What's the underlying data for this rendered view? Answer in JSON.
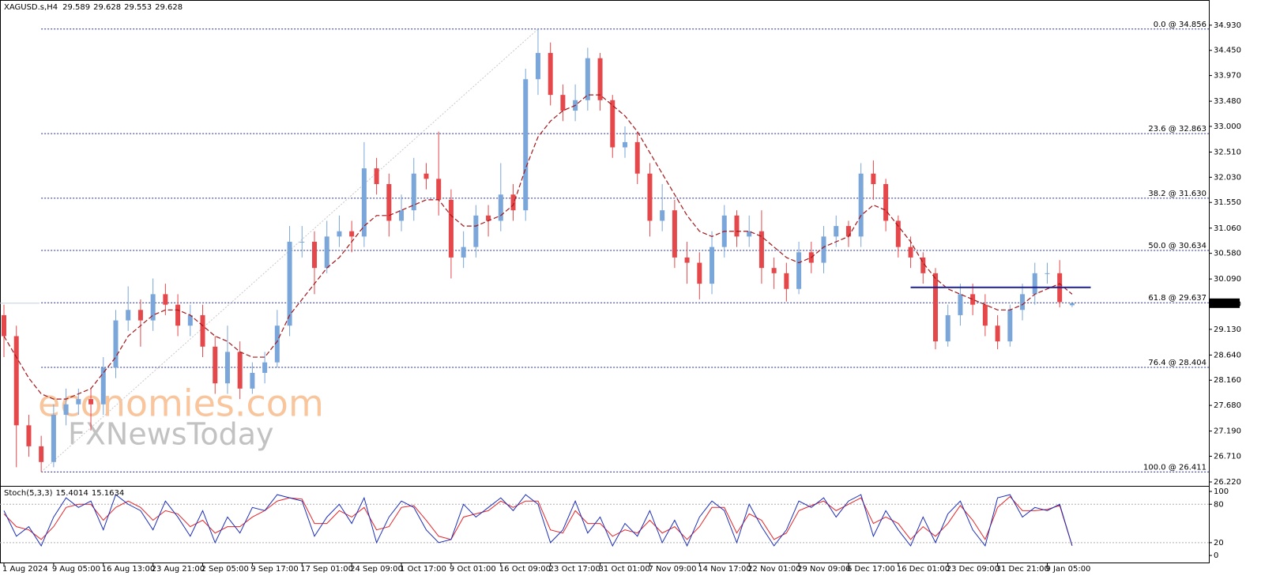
{
  "chart_data": [
    {
      "type": "candlestick",
      "symbol": "XAGUSD.s,H4",
      "up_color": "#7aa6da",
      "down_color": "#e5484b",
      "ma_color": "#a3161a",
      "fib_color": "#26307a",
      "level_color": "#1c1f8f",
      "watermark": [
        "economies.com",
        "FXNewsToday"
      ],
      "x": [
        "1 Aug 2024",
        null,
        null,
        null,
        "9 Aug 05:00",
        null,
        null,
        null,
        "16 Aug 13:00",
        null,
        null,
        null,
        "23 Aug 21:00",
        null,
        null,
        null,
        "2 Sep 05:00",
        null,
        null,
        null,
        "9 Sep 17:00",
        null,
        null,
        null,
        "17 Sep 01:00",
        null,
        null,
        null,
        "24 Sep 09:00",
        null,
        null,
        null,
        "1 Oct 17:00",
        null,
        null,
        null,
        "9 Oct 01:00",
        null,
        null,
        null,
        "16 Oct 09:00",
        null,
        null,
        null,
        "23 Oct 17:00",
        null,
        null,
        null,
        "31 Oct 01:00",
        null,
        null,
        null,
        "7 Nov 09:00",
        null,
        null,
        null,
        "14 Nov 17:00",
        null,
        null,
        null,
        "22 Nov 01:00",
        null,
        null,
        null,
        "29 Nov 09:00",
        null,
        null,
        null,
        "6 Dec 17:00",
        null,
        null,
        null,
        "16 Dec 01:00",
        null,
        null,
        null,
        "23 Dec 09:00",
        null,
        null,
        null,
        "31 Dec 21:00",
        null,
        null,
        null,
        "9 Jan 05:00",
        null,
        null
      ],
      "open": [
        29.4,
        29.0,
        27.3,
        26.9,
        26.6,
        27.5,
        27.7,
        27.8,
        27.7,
        28.4,
        29.3,
        29.5,
        29.3,
        29.8,
        29.6,
        29.2,
        29.4,
        28.8,
        28.1,
        28.7,
        28.0,
        28.3,
        28.5,
        29.2,
        30.8,
        30.8,
        30.3,
        30.9,
        31.0,
        30.9,
        32.2,
        31.9,
        31.2,
        31.4,
        32.1,
        32.0,
        31.6,
        30.5,
        30.7,
        31.3,
        31.2,
        31.7,
        31.4,
        33.9,
        34.4,
        33.6,
        33.3,
        33.5,
        34.3,
        33.5,
        32.6,
        32.7,
        32.1,
        31.2,
        31.4,
        30.5,
        30.4,
        30.0,
        30.7,
        31.3,
        30.9,
        31.0,
        30.3,
        30.2,
        29.9,
        30.6,
        30.4,
        30.9,
        31.1,
        30.9,
        32.1,
        31.9,
        31.2,
        30.7,
        30.5,
        30.2,
        28.9,
        29.4,
        29.8,
        29.6,
        29.2,
        28.9,
        29.5,
        29.8,
        30.2,
        30.2,
        29.589
      ],
      "high": [
        29.6,
        29.2,
        27.5,
        27.1,
        27.7,
        28.0,
        28.0,
        28.0,
        28.6,
        29.5,
        29.95,
        29.7,
        30.1,
        30.0,
        29.8,
        29.6,
        29.6,
        29.0,
        29.2,
        28.9,
        28.5,
        28.7,
        29.5,
        31.1,
        31.1,
        31.0,
        31.2,
        31.3,
        31.2,
        32.7,
        32.4,
        32.1,
        31.7,
        32.4,
        32.3,
        32.9,
        31.8,
        31.0,
        31.5,
        31.5,
        32.3,
        31.9,
        34.1,
        34.856,
        34.6,
        33.8,
        33.8,
        34.5,
        34.4,
        33.6,
        33.0,
        32.9,
        32.3,
        31.9,
        31.6,
        30.8,
        30.6,
        31.0,
        31.5,
        31.4,
        31.3,
        31.4,
        30.5,
        30.4,
        30.8,
        30.8,
        31.1,
        31.3,
        31.2,
        32.3,
        32.35,
        32.0,
        31.3,
        30.9,
        30.6,
        30.3,
        29.6,
        30.0,
        30.0,
        29.8,
        29.4,
        29.6,
        30.0,
        30.4,
        30.4,
        30.45,
        29.628
      ],
      "low": [
        28.6,
        26.5,
        26.7,
        26.411,
        26.5,
        27.3,
        27.5,
        27.2,
        27.5,
        28.2,
        29.1,
        28.8,
        29.1,
        29.4,
        29.0,
        29.0,
        28.6,
        27.9,
        27.9,
        27.8,
        27.9,
        28.1,
        28.4,
        29.0,
        30.5,
        29.8,
        30.2,
        30.7,
        30.6,
        30.7,
        31.7,
        30.9,
        31.0,
        31.2,
        31.8,
        31.3,
        30.1,
        30.3,
        30.5,
        30.9,
        31.0,
        31.2,
        31.2,
        33.6,
        33.4,
        33.1,
        33.1,
        33.3,
        33.3,
        32.4,
        32.4,
        31.9,
        30.9,
        31.0,
        30.3,
        30.0,
        29.7,
        29.8,
        30.5,
        30.7,
        30.7,
        30.0,
        29.9,
        29.66,
        29.8,
        30.2,
        30.2,
        30.7,
        30.7,
        30.7,
        31.6,
        31.0,
        30.5,
        30.3,
        30.0,
        28.75,
        28.8,
        29.2,
        29.4,
        29.0,
        28.75,
        28.8,
        29.3,
        29.6,
        30.0,
        29.55,
        29.553
      ],
      "close": [
        29.0,
        27.3,
        26.9,
        26.6,
        27.5,
        27.7,
        27.8,
        27.7,
        28.4,
        29.3,
        29.5,
        29.3,
        29.8,
        29.6,
        29.2,
        29.4,
        28.8,
        28.1,
        28.7,
        28.0,
        28.3,
        28.5,
        29.2,
        30.8,
        30.8,
        30.3,
        30.9,
        31.0,
        30.9,
        32.2,
        31.9,
        31.2,
        31.4,
        32.1,
        32.0,
        31.6,
        30.5,
        30.7,
        31.3,
        31.2,
        31.7,
        31.4,
        33.9,
        34.4,
        33.6,
        33.3,
        33.5,
        34.3,
        33.5,
        32.6,
        32.7,
        32.1,
        31.2,
        31.4,
        30.5,
        30.4,
        30.0,
        30.7,
        31.3,
        30.9,
        31.0,
        30.3,
        30.2,
        29.9,
        30.6,
        30.4,
        30.9,
        31.1,
        30.9,
        32.1,
        31.9,
        31.2,
        30.7,
        30.5,
        30.2,
        28.9,
        29.4,
        29.8,
        29.6,
        29.2,
        28.9,
        29.5,
        29.8,
        30.2,
        30.2,
        29.65,
        29.628
      ],
      "ma": [
        29.0,
        28.6,
        28.2,
        27.9,
        27.8,
        27.8,
        27.9,
        28.0,
        28.3,
        28.6,
        29.0,
        29.2,
        29.4,
        29.5,
        29.5,
        29.4,
        29.2,
        29.0,
        28.9,
        28.7,
        28.6,
        28.6,
        28.9,
        29.4,
        29.7,
        30.0,
        30.3,
        30.5,
        30.8,
        31.1,
        31.3,
        31.3,
        31.4,
        31.5,
        31.6,
        31.6,
        31.3,
        31.1,
        31.1,
        31.2,
        31.3,
        31.5,
        32.2,
        32.8,
        33.1,
        33.3,
        33.4,
        33.6,
        33.6,
        33.4,
        33.2,
        32.9,
        32.5,
        32.1,
        31.7,
        31.3,
        31.0,
        30.9,
        31.0,
        31.0,
        31.0,
        30.9,
        30.7,
        30.5,
        30.4,
        30.5,
        30.7,
        30.8,
        30.9,
        31.3,
        31.5,
        31.4,
        31.1,
        30.8,
        30.4,
        30.1,
        29.9,
        29.8,
        29.7,
        29.6,
        29.5,
        29.5,
        29.6,
        29.8,
        29.9,
        30.0,
        29.8
      ],
      "fibonacci": [
        {
          "label": "0.0 @ 34.856",
          "value": 34.856
        },
        {
          "label": "23.6 @ 32.863",
          "value": 32.863
        },
        {
          "label": "38.2 @ 31.630",
          "value": 31.63
        },
        {
          "label": "50.0 @ 30.634",
          "value": 30.634
        },
        {
          "label": "61.8 @ 29.637",
          "value": 29.637
        },
        {
          "label": "76.4 @ 28.404",
          "value": 28.404
        },
        {
          "label": "100.0 @ 26.411",
          "value": 26.411
        }
      ],
      "level": 29.93,
      "ylim": [
        26.16,
        35.38
      ],
      "yticks": [
        {
          "value": 26.22,
          "label": "26.220"
        },
        {
          "value": 26.71,
          "label": "26.710"
        },
        {
          "value": 27.19,
          "label": "27.190"
        },
        {
          "value": 27.68,
          "label": "27.680"
        },
        {
          "value": 28.16,
          "label": "28.160"
        },
        {
          "value": 28.64,
          "label": "28.640"
        },
        {
          "value": 29.13,
          "label": "29.130"
        },
        {
          "value": 29.61,
          "label": "29.610"
        },
        {
          "value": 30.09,
          "label": "30.090"
        },
        {
          "value": 30.58,
          "label": "30.580"
        },
        {
          "value": 31.06,
          "label": "31.060"
        },
        {
          "value": 31.55,
          "label": "31.550"
        },
        {
          "value": 32.03,
          "label": "32.030"
        },
        {
          "value": 32.51,
          "label": "32.510"
        },
        {
          "value": 33.0,
          "label": "33.000"
        },
        {
          "value": 33.48,
          "label": "33.480"
        },
        {
          "value": 33.97,
          "label": "33.970"
        },
        {
          "value": 34.45,
          "label": "34.450"
        },
        {
          "value": 34.93,
          "label": "34.930"
        }
      ]
    },
    {
      "type": "line",
      "title": "Stoch(5,3,3)",
      "series": [
        {
          "name": "main",
          "color": "#1c2fb8",
          "values": [
            70,
            30,
            45,
            15,
            60,
            90,
            75,
            85,
            40,
            95,
            80,
            70,
            40,
            85,
            60,
            30,
            70,
            20,
            60,
            35,
            75,
            70,
            95,
            90,
            85,
            30,
            60,
            80,
            50,
            90,
            20,
            60,
            85,
            75,
            40,
            20,
            25,
            80,
            60,
            75,
            90,
            70,
            95,
            80,
            20,
            40,
            85,
            35,
            60,
            15,
            50,
            30,
            70,
            20,
            55,
            15,
            60,
            85,
            70,
            20,
            80,
            45,
            15,
            40,
            85,
            75,
            90,
            60,
            85,
            95,
            30,
            70,
            40,
            15,
            60,
            20,
            65,
            85,
            40,
            15,
            90,
            95,
            60,
            75,
            70,
            80,
            15.4014
          ]
        },
        {
          "name": "signal",
          "color": "#e5252a",
          "values": [
            65,
            45,
            40,
            25,
            45,
            75,
            80,
            80,
            55,
            75,
            85,
            75,
            55,
            70,
            65,
            45,
            55,
            35,
            45,
            45,
            60,
            70,
            85,
            90,
            88,
            50,
            50,
            70,
            60,
            75,
            40,
            45,
            75,
            78,
            55,
            30,
            25,
            60,
            65,
            70,
            85,
            75,
            85,
            85,
            40,
            35,
            70,
            50,
            50,
            30,
            40,
            35,
            55,
            35,
            45,
            25,
            45,
            75,
            75,
            35,
            65,
            55,
            25,
            35,
            70,
            78,
            85,
            70,
            80,
            90,
            50,
            60,
            50,
            25,
            45,
            30,
            50,
            78,
            55,
            25,
            75,
            92,
            70,
            70,
            72,
            78,
            15.1634
          ]
        }
      ],
      "ylim": [
        -11,
        105
      ],
      "yticks": [
        0,
        20,
        80,
        100
      ],
      "levels": [
        20,
        80
      ]
    }
  ]
}
